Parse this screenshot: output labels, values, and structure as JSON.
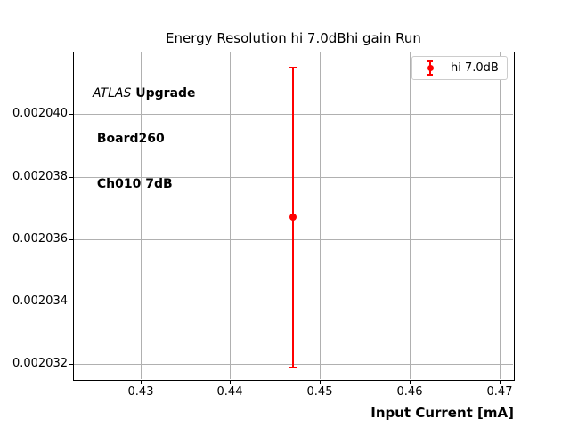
{
  "annotation": {
    "line1_italic": "ATLAS",
    "line1_bold": " Upgrade",
    "line2": " Board260",
    "line3": " Ch010 7dB"
  },
  "chart_data": {
    "type": "scatter",
    "title": "Energy Resolution hi 7.0dBhi gain Run",
    "xlabel": "Input Current [mA]",
    "ylabel": "",
    "xlim": [
      0.4225,
      0.4716
    ],
    "ylim": [
      0.0020315,
      0.002042
    ],
    "xticks": [
      0.43,
      0.44,
      0.45,
      0.46,
      0.47
    ],
    "xtick_labels": [
      "0.43",
      "0.44",
      "0.45",
      "0.46",
      "0.47"
    ],
    "yticks": [
      0.002032,
      0.002034,
      0.002036,
      0.002038,
      0.00204
    ],
    "ytick_labels": [
      "0.002032",
      "0.002034",
      "0.002036",
      "0.002038",
      "0.002040"
    ],
    "grid": true,
    "legend_position": "upper right",
    "series": [
      {
        "name": "hi 7.0dB",
        "color": "#ff0000",
        "marker": "circle",
        "points": [
          {
            "x": 0.447,
            "y": 0.0020367,
            "yerr": 4.8e-06
          }
        ]
      }
    ],
    "colors": {
      "grid": "#b0b0b0",
      "spine": "#000000",
      "accent": "#ff0000"
    }
  }
}
